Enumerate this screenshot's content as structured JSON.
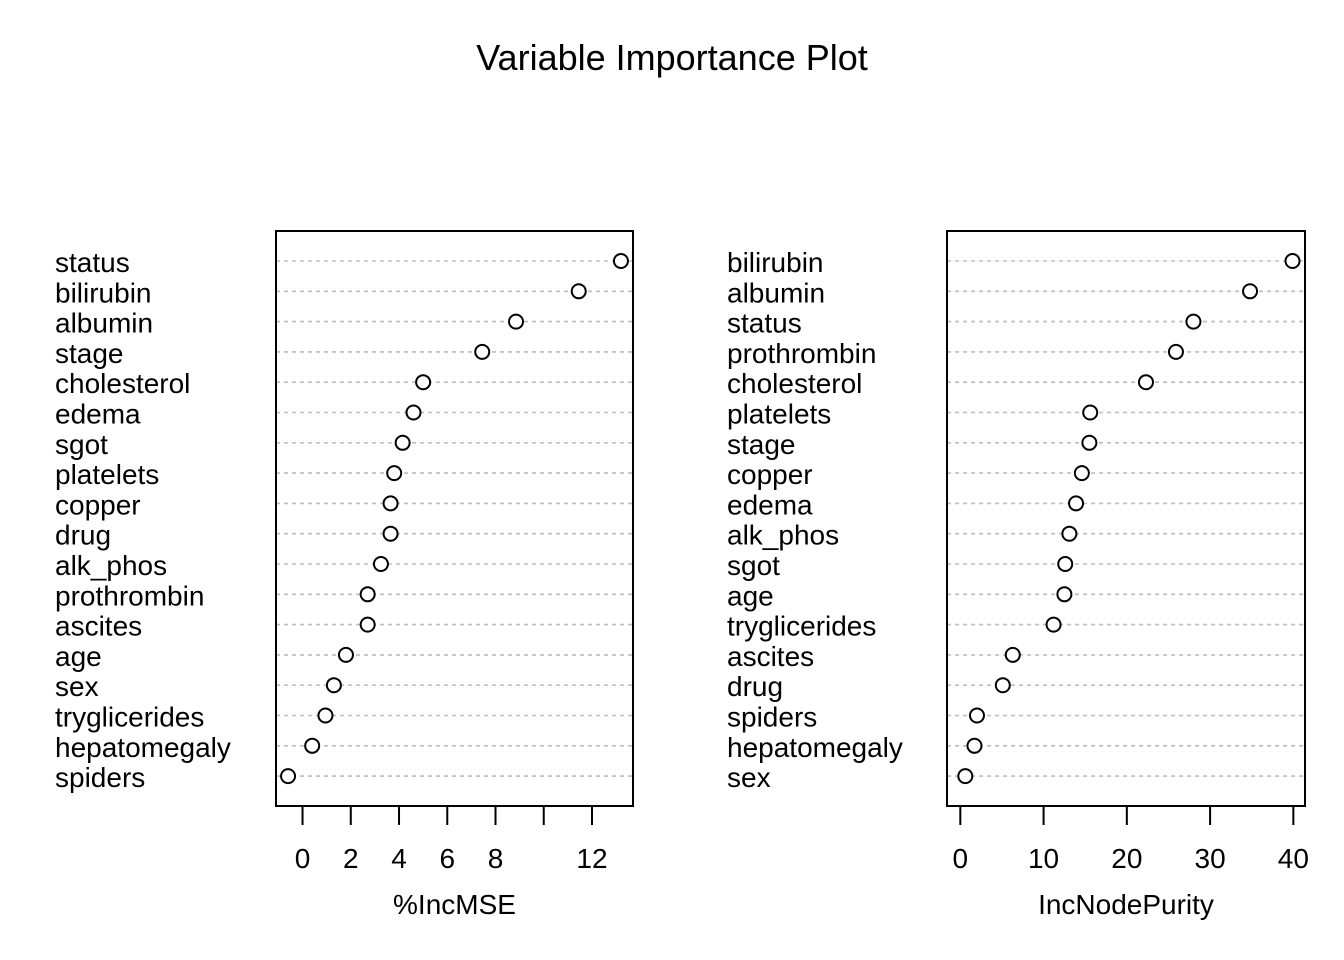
{
  "title": "Variable Importance Plot",
  "chart_data": [
    {
      "type": "scatter",
      "xlabel": "%IncMSE",
      "xlim": [
        -1.1,
        13.7
      ],
      "xticks": [
        0,
        2,
        4,
        6,
        8,
        10,
        12
      ],
      "xtick_labels": [
        "0",
        "2",
        "4",
        "6",
        "8",
        "",
        "12"
      ],
      "grid": "dotted horizontal",
      "items": [
        {
          "label": "status",
          "value": 13.2
        },
        {
          "label": "bilirubin",
          "value": 11.45
        },
        {
          "label": "albumin",
          "value": 8.85
        },
        {
          "label": "stage",
          "value": 7.45
        },
        {
          "label": "cholesterol",
          "value": 5.0
        },
        {
          "label": "edema",
          "value": 4.6
        },
        {
          "label": "sgot",
          "value": 4.15
        },
        {
          "label": "platelets",
          "value": 3.8
        },
        {
          "label": "copper",
          "value": 3.65
        },
        {
          "label": "drug",
          "value": 3.65
        },
        {
          "label": "alk_phos",
          "value": 3.25
        },
        {
          "label": "prothrombin",
          "value": 2.7
        },
        {
          "label": "ascites",
          "value": 2.7
        },
        {
          "label": "age",
          "value": 1.8
        },
        {
          "label": "sex",
          "value": 1.3
        },
        {
          "label": "tryglicerides",
          "value": 0.95
        },
        {
          "label": "hepatomegaly",
          "value": 0.4
        },
        {
          "label": "spiders",
          "value": -0.6
        }
      ]
    },
    {
      "type": "scatter",
      "xlabel": "IncNodePurity",
      "xlim": [
        -1.6,
        41.4
      ],
      "xticks": [
        0,
        10,
        20,
        30,
        40
      ],
      "xtick_labels": [
        "0",
        "10",
        "20",
        "30",
        "40"
      ],
      "grid": "dotted horizontal",
      "items": [
        {
          "label": "bilirubin",
          "value": 39.9
        },
        {
          "label": "albumin",
          "value": 34.8
        },
        {
          "label": "status",
          "value": 28.0
        },
        {
          "label": "prothrombin",
          "value": 25.9
        },
        {
          "label": "cholesterol",
          "value": 22.3
        },
        {
          "label": "platelets",
          "value": 15.6
        },
        {
          "label": "stage",
          "value": 15.5
        },
        {
          "label": "copper",
          "value": 14.6
        },
        {
          "label": "edema",
          "value": 13.9
        },
        {
          "label": "alk_phos",
          "value": 13.1
        },
        {
          "label": "sgot",
          "value": 12.6
        },
        {
          "label": "age",
          "value": 12.5
        },
        {
          "label": "tryglicerides",
          "value": 11.2
        },
        {
          "label": "ascites",
          "value": 6.3
        },
        {
          "label": "drug",
          "value": 5.1
        },
        {
          "label": "spiders",
          "value": 2.0
        },
        {
          "label": "hepatomegaly",
          "value": 1.7
        },
        {
          "label": "sex",
          "value": 0.6
        }
      ]
    }
  ]
}
